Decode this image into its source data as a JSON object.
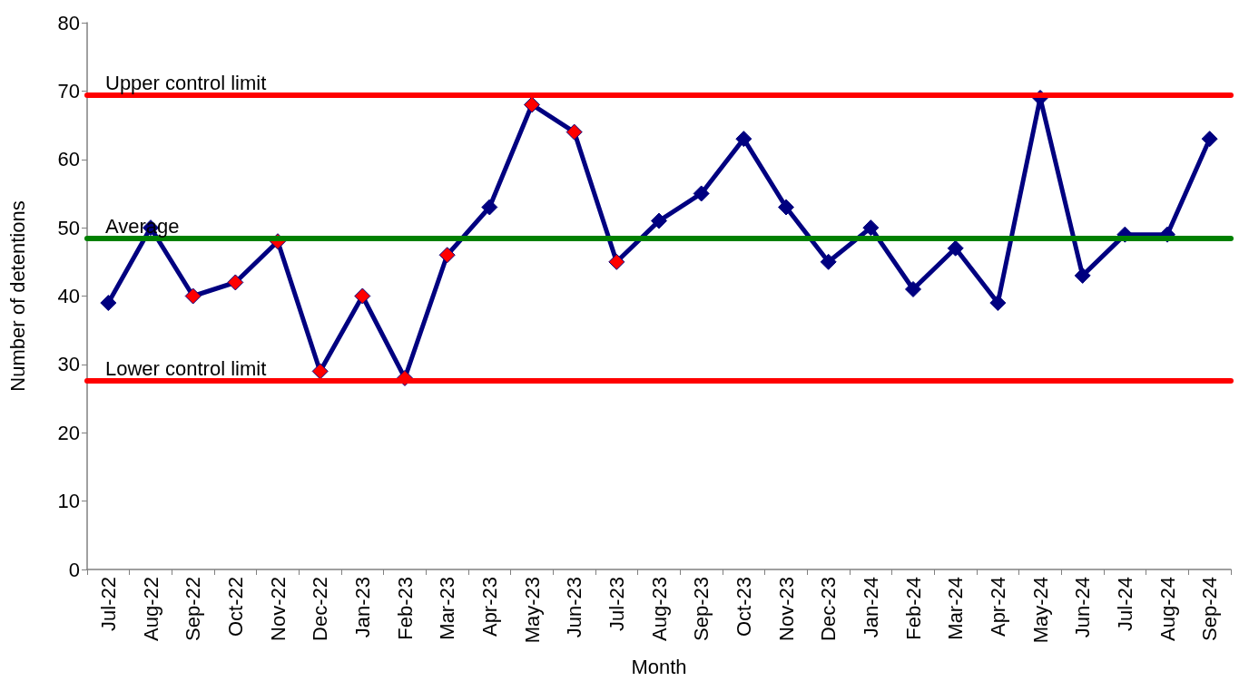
{
  "chart_data": {
    "type": "line",
    "xlabel": "Month",
    "ylabel": "Number of detentions",
    "categories": [
      "Jul-22",
      "Aug-22",
      "Sep-22",
      "Oct-22",
      "Nov-22",
      "Dec-22",
      "Jan-23",
      "Feb-23",
      "Mar-23",
      "Apr-23",
      "May-23",
      "Jun-23",
      "Jul-23",
      "Aug-23",
      "Sep-23",
      "Oct-23",
      "Nov-23",
      "Dec-23",
      "Jan-24",
      "Feb-24",
      "Mar-24",
      "Apr-24",
      "May-24",
      "Jun-24",
      "Jul-24",
      "Aug-24",
      "Sep-24"
    ],
    "series": [
      {
        "color": "#000080",
        "values": [
          39,
          50,
          40,
          42,
          48,
          29,
          40,
          28,
          46,
          53,
          68,
          64,
          45,
          51,
          55,
          63,
          53,
          45,
          50,
          41,
          47,
          39,
          69,
          43,
          49,
          49,
          63
        ],
        "colors": [
          "#000080",
          "#000080",
          "#ff0000",
          "#ff0000",
          "#ff0000",
          "#ff0000",
          "#ff0000",
          "#ff0000",
          "#ff0000",
          "#000080",
          "#ff0000",
          "#ff0000",
          "#ff0000",
          "#000080",
          "#000080",
          "#000080",
          "#000080",
          "#000080",
          "#000080",
          "#000080",
          "#000080",
          "#000080",
          "#000080",
          "#000080",
          "#000080",
          "#000080",
          "#000080"
        ]
      }
    ],
    "ylim": [
      0,
      80
    ],
    "yticks": [
      0,
      10,
      20,
      30,
      40,
      50,
      60,
      70,
      80
    ],
    "grid": false,
    "marker": "diamond",
    "line_style": "solid",
    "ref_lines": [
      {
        "axis": "y",
        "value": 69.4,
        "label": "Upper control limit",
        "color": "#ff0000"
      },
      {
        "axis": "y",
        "value": 48.5,
        "label": "Average",
        "color": "#008000"
      },
      {
        "axis": "y",
        "value": 27.6,
        "label": "Lower control limit",
        "color": "#ff0000"
      }
    ]
  }
}
